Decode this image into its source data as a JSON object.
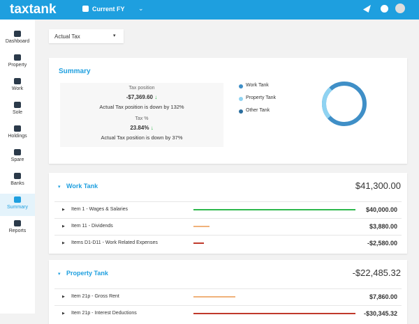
{
  "header": {
    "logo": "taxtank",
    "period": "Current FY"
  },
  "sidebar": [
    "Dashboard",
    "Property",
    "Work",
    "Sole",
    "Holdings",
    "Spare",
    "Banks",
    "Summary",
    "Reports"
  ],
  "filter": "Actual Tax",
  "summary": {
    "title": "Summary",
    "tax_position": {
      "label": "Tax position",
      "value": "-$7,369.60",
      "note": "Actual Tax position is down by 132%"
    },
    "tax_percent": {
      "label": "Tax %",
      "value": "23.84%",
      "note": "Actual Tax position is down by 37%"
    },
    "legend": [
      "Work Tank",
      "Property Tank",
      "Other Tank"
    ]
  },
  "tanks": [
    {
      "name": "Work Tank",
      "total": "$41,300.00",
      "items": [
        {
          "name": "Item 1 - Wages & Salaries",
          "amount": {
            "value": 40000,
            "label": "$40,000.00"
          }
        },
        {
          "name": "Item 11 - Dividends",
          "amount": {
            "value": 3880,
            "label": "$3,880.00"
          }
        },
        {
          "name": "Items D1-D11 - Work Related Expenses",
          "amount": {
            "value": -2580,
            "label": "-$2,580.00"
          }
        }
      ]
    },
    {
      "name": "Property Tank",
      "total": "-$22,485.32",
      "items": [
        {
          "name": "Item 21p - Gross Rent",
          "amount": {
            "value": 7860,
            "label": "$7,860.00"
          }
        },
        {
          "name": "Item 21p - Interest Deductions",
          "amount": {
            "value": -30345.32,
            "label": "-$30,345.32"
          }
        }
      ]
    }
  ]
}
